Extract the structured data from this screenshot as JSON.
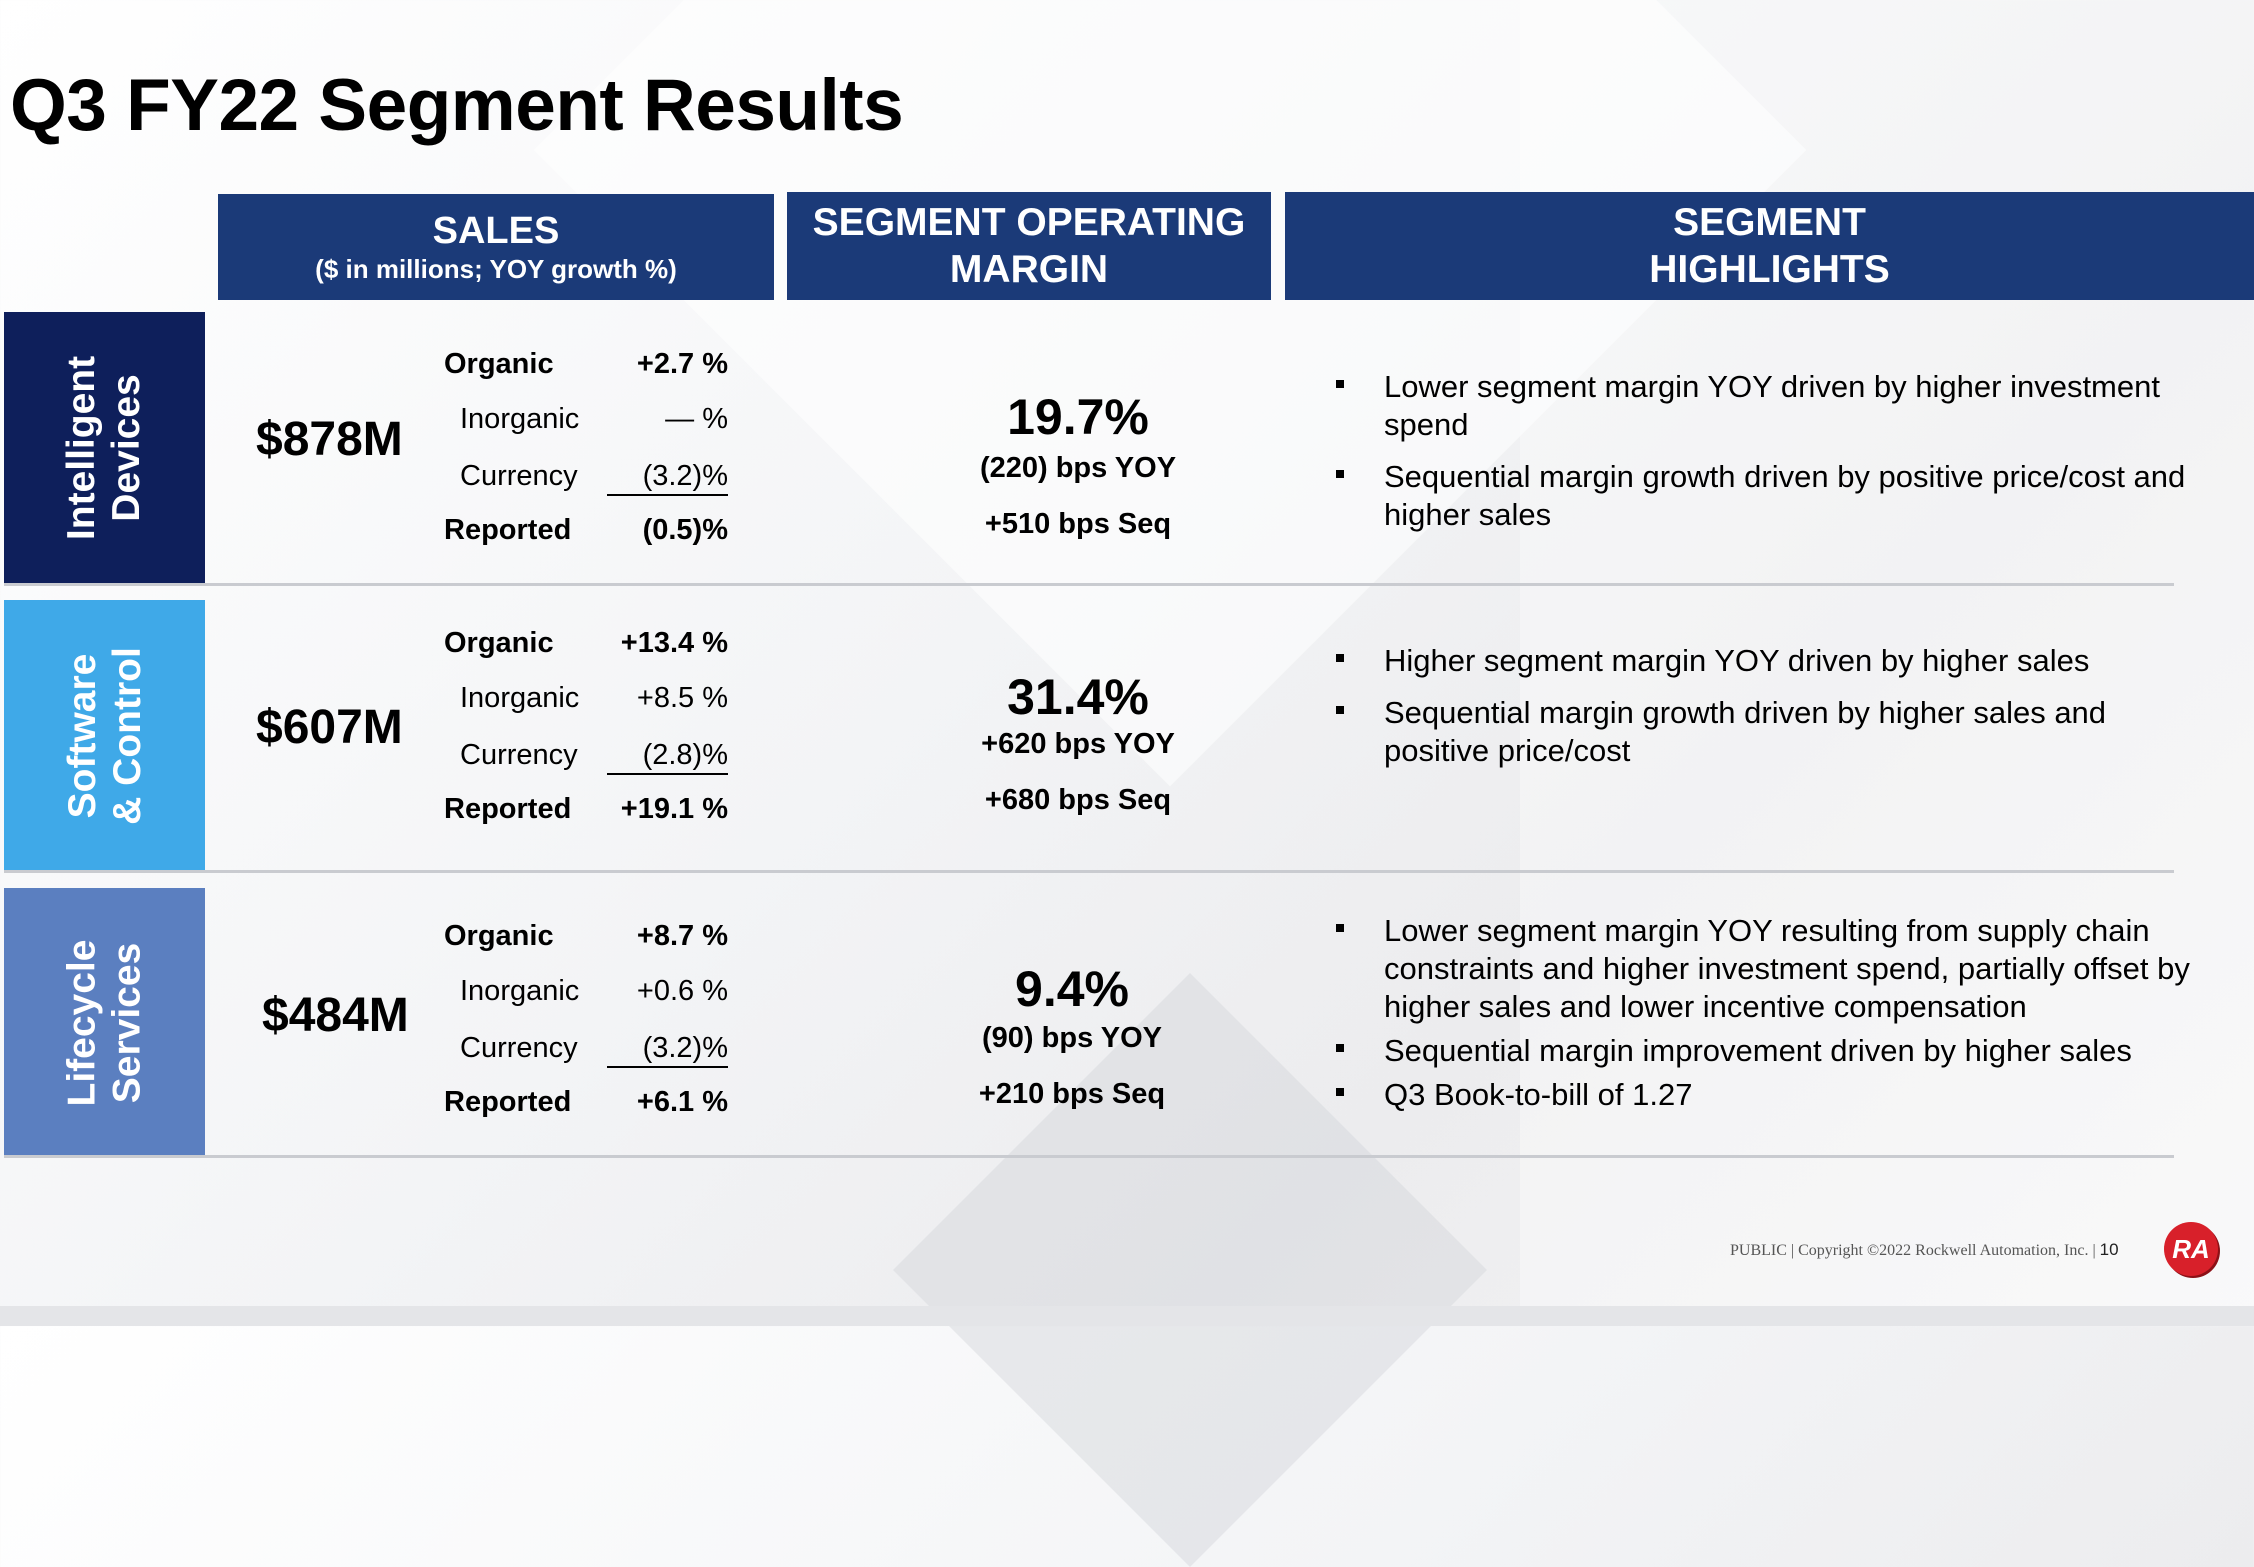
{
  "title": "Q3 FY22 Segment Results",
  "headers": {
    "sales_title": "SALES",
    "sales_sub": "($ in millions; YOY growth %)",
    "margin_line1": "SEGMENT OPERATING",
    "margin_line2": "MARGIN",
    "highlights_line1": "SEGMENT",
    "highlights_line2": "HIGHLIGHTS"
  },
  "segments": [
    {
      "name_line1": "Intelligent",
      "name_line2": "Devices",
      "color": "#0e1f5b",
      "sales": "$878M",
      "breakdown": {
        "organic_label": "Organic",
        "organic": "+2.7 %",
        "inorganic_label": "Inorganic",
        "inorganic": "— %",
        "currency_label": "Currency",
        "currency": "(3.2)%",
        "reported_label": "Reported",
        "reported": "(0.5)%"
      },
      "margin": "19.7%",
      "yoy": "(220) bps YOY",
      "seq": "+510 bps Seq",
      "highlights": [
        "Lower segment margin YOY driven by higher investment spend",
        "Sequential margin growth driven by positive price/cost and higher sales"
      ]
    },
    {
      "name_line1": "Software",
      "name_line2": "& Control",
      "color": "#3fa9e8",
      "sales": "$607M",
      "breakdown": {
        "organic_label": "Organic",
        "organic": "+13.4 %",
        "inorganic_label": "Inorganic",
        "inorganic": "+8.5 %",
        "currency_label": "Currency",
        "currency": "(2.8)%",
        "reported_label": "Reported",
        "reported": "+19.1 %"
      },
      "margin": "31.4%",
      "yoy": "+620 bps YOY",
      "seq": "+680 bps Seq",
      "highlights": [
        "Higher segment margin YOY driven by higher sales",
        "Sequential margin growth driven by higher sales and positive price/cost"
      ]
    },
    {
      "name_line1": "Lifecycle",
      "name_line2": "Services",
      "color": "#5b7fc0",
      "sales": "$484M",
      "breakdown": {
        "organic_label": "Organic",
        "organic": "+8.7 %",
        "inorganic_label": "Inorganic",
        "inorganic": "+0.6 %",
        "currency_label": "Currency",
        "currency": "(3.2)%",
        "reported_label": "Reported",
        "reported": "+6.1 %"
      },
      "margin": "9.4%",
      "yoy": "(90) bps YOY",
      "seq": "+210 bps Seq",
      "highlights": [
        "Lower segment margin YOY resulting from supply chain constraints and higher investment spend, partially offset by higher sales and lower incentive compensation",
        "Sequential margin improvement driven by higher sales",
        "Q3 Book-to-bill of 1.27"
      ]
    }
  ],
  "footer": {
    "text": "PUBLIC | Copyright ©2022 Rockwell Automation, Inc. |",
    "page": "10",
    "logo": "RA"
  }
}
